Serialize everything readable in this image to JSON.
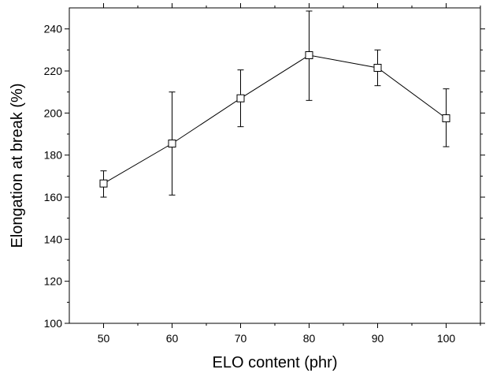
{
  "chart_data": {
    "type": "line",
    "title": "",
    "xlabel": "ELO content (phr)",
    "ylabel": "Elongation at break (%)",
    "x": [
      50,
      60,
      70,
      80,
      90,
      100
    ],
    "xlim": [
      45,
      105
    ],
    "ylim": [
      100,
      250
    ],
    "x_ticks": [
      50,
      60,
      70,
      80,
      90,
      100
    ],
    "y_ticks": [
      100,
      120,
      140,
      160,
      180,
      200,
      220,
      240
    ],
    "grid": false,
    "legend": "none",
    "series": [
      {
        "marker": "open-square",
        "color": "#000000",
        "values": [
          166.5,
          185.5,
          207,
          227.5,
          221.5,
          197.5
        ],
        "error_low": [
          160,
          161,
          193.5,
          206,
          213,
          184
        ],
        "error_high": [
          172.5,
          210,
          220.5,
          248.5,
          230,
          211.5
        ]
      }
    ]
  }
}
